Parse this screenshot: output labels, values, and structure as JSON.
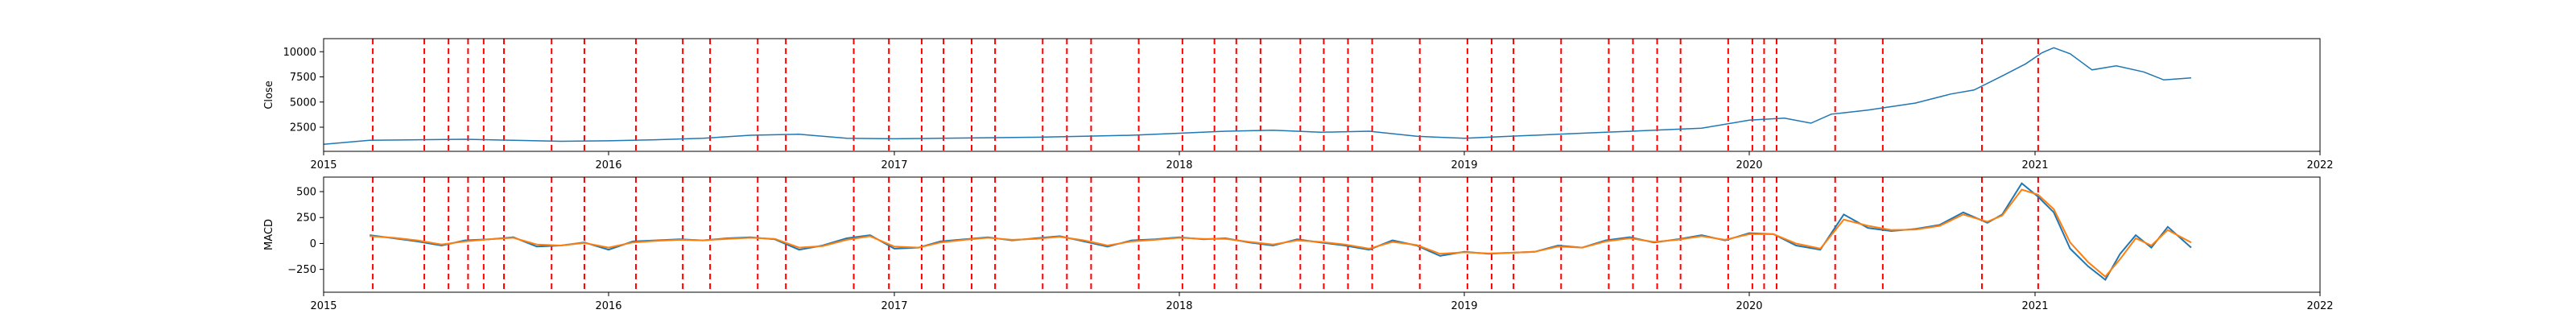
{
  "chart_data": [
    {
      "type": "line",
      "title": "",
      "xlabel": "",
      "ylabel": "Close",
      "xlim": [
        "2015-01-01",
        "2022-01-01"
      ],
      "ylim": [
        100,
        11300
      ],
      "x_ticks": [
        "2015",
        "2016",
        "2017",
        "2018",
        "2019",
        "2020",
        "2021",
        "2022"
      ],
      "y_ticks": [
        2500,
        5000,
        7500,
        10000
      ],
      "y_tick_labels": [
        "2500",
        "5000",
        "7500",
        "10000"
      ],
      "grid": false,
      "series": [
        {
          "color": "#1f77b4",
          "x": [
            "2015-01-01",
            "2015-03-01",
            "2015-05-01",
            "2015-07-01",
            "2015-09-01",
            "2015-11-01",
            "2016-01-01",
            "2016-03-01",
            "2016-05-01",
            "2016-07-01",
            "2016-09-01",
            "2016-11-01",
            "2017-01-01",
            "2017-03-01",
            "2017-05-01",
            "2017-07-01",
            "2017-09-01",
            "2017-11-01",
            "2018-01-01",
            "2018-03-01",
            "2018-05-01",
            "2018-07-01",
            "2018-09-01",
            "2018-11-01",
            "2019-01-01",
            "2019-03-01",
            "2019-05-01",
            "2019-07-01",
            "2019-09-01",
            "2019-11-01",
            "2020-01-01",
            "2020-02-15",
            "2020-03-20",
            "2020-04-15",
            "2020-06-01",
            "2020-08-01",
            "2020-09-15",
            "2020-10-15",
            "2020-11-20",
            "2020-12-20",
            "2021-01-10",
            "2021-01-25",
            "2021-02-15",
            "2021-03-15",
            "2021-04-15",
            "2021-05-20",
            "2021-06-15",
            "2021-07-20"
          ],
          "values": [
            800,
            1200,
            1250,
            1300,
            1200,
            1100,
            1150,
            1250,
            1400,
            1700,
            1800,
            1400,
            1350,
            1400,
            1450,
            1500,
            1600,
            1700,
            1900,
            2100,
            2200,
            2000,
            2100,
            1600,
            1400,
            1600,
            1800,
            2000,
            2200,
            2400,
            3200,
            3400,
            2900,
            3800,
            4200,
            4900,
            5800,
            6200,
            7600,
            8800,
            9900,
            10400,
            9800,
            8200,
            8600,
            8000,
            7200,
            7400
          ]
        }
      ],
      "event_lines": [
        "2015-03-05",
        "2015-05-10",
        "2015-06-10",
        "2015-07-05",
        "2015-07-25",
        "2015-08-20",
        "2015-10-20",
        "2015-12-01",
        "2016-02-05",
        "2016-04-05",
        "2016-05-10",
        "2016-07-10",
        "2016-08-15",
        "2016-11-10",
        "2016-12-25",
        "2017-02-05",
        "2017-03-05",
        "2017-04-10",
        "2017-05-10",
        "2017-07-10",
        "2017-08-10",
        "2017-09-10",
        "2017-11-10",
        "2018-01-05",
        "2018-02-15",
        "2018-03-15",
        "2018-04-15",
        "2018-06-05",
        "2018-07-05",
        "2018-08-05",
        "2018-09-05",
        "2018-11-05",
        "2019-01-05",
        "2019-02-05",
        "2019-03-05",
        "2019-05-05",
        "2019-07-05",
        "2019-08-05",
        "2019-09-05",
        "2019-10-05",
        "2019-12-05",
        "2020-01-05",
        "2020-01-20",
        "2020-02-05",
        "2020-04-20",
        "2020-06-20",
        "2020-10-25",
        "2021-01-05"
      ]
    },
    {
      "type": "line",
      "title": "",
      "xlabel": "",
      "ylabel": "MACD",
      "xlim": [
        "2015-01-01",
        "2022-01-01"
      ],
      "ylim": [
        -470,
        640
      ],
      "x_ticks": [
        "2015",
        "2016",
        "2017",
        "2018",
        "2019",
        "2020",
        "2021",
        "2022"
      ],
      "y_ticks": [
        -250,
        0,
        250,
        500
      ],
      "y_tick_labels": [
        "−250",
        "0",
        "250",
        "500"
      ],
      "grid": false,
      "series": [
        {
          "color": "#1f77b4",
          "x": [
            "2015-03-01",
            "2015-04-01",
            "2015-05-01",
            "2015-06-01",
            "2015-07-01",
            "2015-08-01",
            "2015-09-01",
            "2015-10-01",
            "2015-11-01",
            "2015-12-01",
            "2016-01-01",
            "2016-02-01",
            "2016-03-01",
            "2016-04-01",
            "2016-05-01",
            "2016-06-01",
            "2016-07-01",
            "2016-08-01",
            "2016-09-01",
            "2016-10-01",
            "2016-11-01",
            "2016-12-01",
            "2017-01-01",
            "2017-02-01",
            "2017-03-01",
            "2017-04-01",
            "2017-05-01",
            "2017-06-01",
            "2017-07-01",
            "2017-08-01",
            "2017-09-01",
            "2017-10-01",
            "2017-11-01",
            "2017-12-01",
            "2018-01-01",
            "2018-02-01",
            "2018-03-01",
            "2018-04-01",
            "2018-05-01",
            "2018-06-01",
            "2018-07-01",
            "2018-08-01",
            "2018-09-01",
            "2018-10-01",
            "2018-11-01",
            "2018-12-01",
            "2019-01-01",
            "2019-02-01",
            "2019-03-01",
            "2019-04-01",
            "2019-05-01",
            "2019-06-01",
            "2019-07-01",
            "2019-08-01",
            "2019-09-01",
            "2019-10-01",
            "2019-11-01",
            "2019-12-01",
            "2020-01-01",
            "2020-02-01",
            "2020-03-01",
            "2020-04-01",
            "2020-05-01",
            "2020-06-01",
            "2020-07-01",
            "2020-08-01",
            "2020-09-01",
            "2020-10-01",
            "2020-11-01",
            "2020-11-20",
            "2020-12-15",
            "2021-01-05",
            "2021-01-25",
            "2021-02-15",
            "2021-03-10",
            "2021-04-01",
            "2021-04-20",
            "2021-05-10",
            "2021-05-30",
            "2021-06-20",
            "2021-07-20"
          ],
          "values": [
            80,
            50,
            20,
            -20,
            30,
            40,
            60,
            -30,
            -20,
            10,
            -60,
            20,
            30,
            40,
            30,
            50,
            60,
            40,
            -60,
            -20,
            50,
            80,
            -50,
            -40,
            20,
            40,
            60,
            30,
            50,
            70,
            20,
            -30,
            30,
            40,
            60,
            40,
            50,
            10,
            -20,
            40,
            10,
            -20,
            -60,
            30,
            -20,
            -120,
            -80,
            -100,
            -90,
            -80,
            -20,
            -40,
            30,
            60,
            10,
            40,
            80,
            30,
            100,
            90,
            -20,
            -60,
            280,
            150,
            120,
            140,
            180,
            300,
            200,
            280,
            580,
            450,
            300,
            -50,
            -220,
            -350,
            -100,
            80,
            -40,
            160,
            -40
          ]
        },
        {
          "color": "#ff7f0e",
          "x": [
            "2015-03-01",
            "2015-04-01",
            "2015-05-01",
            "2015-06-01",
            "2015-07-01",
            "2015-08-01",
            "2015-09-01",
            "2015-10-01",
            "2015-11-01",
            "2015-12-01",
            "2016-01-01",
            "2016-02-01",
            "2016-03-01",
            "2016-04-01",
            "2016-05-01",
            "2016-06-01",
            "2016-07-01",
            "2016-08-01",
            "2016-09-01",
            "2016-10-01",
            "2016-11-01",
            "2016-12-01",
            "2017-01-01",
            "2017-02-01",
            "2017-03-01",
            "2017-04-01",
            "2017-05-01",
            "2017-06-01",
            "2017-07-01",
            "2017-08-01",
            "2017-09-01",
            "2017-10-01",
            "2017-11-01",
            "2017-12-01",
            "2018-01-01",
            "2018-02-01",
            "2018-03-01",
            "2018-04-01",
            "2018-05-01",
            "2018-06-01",
            "2018-07-01",
            "2018-08-01",
            "2018-09-01",
            "2018-10-01",
            "2018-11-01",
            "2018-12-01",
            "2019-01-01",
            "2019-02-01",
            "2019-03-01",
            "2019-04-01",
            "2019-05-01",
            "2019-06-01",
            "2019-07-01",
            "2019-08-01",
            "2019-09-01",
            "2019-10-01",
            "2019-11-01",
            "2019-12-01",
            "2020-01-01",
            "2020-02-01",
            "2020-03-01",
            "2020-04-01",
            "2020-05-01",
            "2020-06-01",
            "2020-07-01",
            "2020-08-01",
            "2020-09-01",
            "2020-10-01",
            "2020-11-01",
            "2020-11-20",
            "2020-12-15",
            "2021-01-05",
            "2021-01-25",
            "2021-02-15",
            "2021-03-10",
            "2021-04-01",
            "2021-04-20",
            "2021-05-10",
            "2021-05-30",
            "2021-06-20",
            "2021-07-20"
          ],
          "values": [
            70,
            55,
            30,
            -10,
            20,
            40,
            55,
            -10,
            -20,
            5,
            -40,
            10,
            25,
            35,
            30,
            45,
            55,
            45,
            -40,
            -25,
            35,
            70,
            -30,
            -40,
            10,
            35,
            55,
            35,
            45,
            65,
            30,
            -20,
            20,
            35,
            55,
            45,
            45,
            15,
            -10,
            30,
            15,
            -10,
            -50,
            15,
            -15,
            -100,
            -85,
            -95,
            -90,
            -80,
            -30,
            -40,
            20,
            50,
            15,
            35,
            70,
            35,
            90,
            90,
            0,
            -50,
            230,
            170,
            130,
            135,
            170,
            280,
            210,
            270,
            520,
            470,
            330,
            10,
            -180,
            -320,
            -150,
            50,
            -20,
            130,
            10
          ]
        }
      ],
      "event_lines": [
        "2015-03-05",
        "2015-05-10",
        "2015-06-10",
        "2015-07-05",
        "2015-07-25",
        "2015-08-20",
        "2015-10-20",
        "2015-12-01",
        "2016-02-05",
        "2016-04-05",
        "2016-05-10",
        "2016-07-10",
        "2016-08-15",
        "2016-11-10",
        "2016-12-25",
        "2017-02-05",
        "2017-03-05",
        "2017-04-10",
        "2017-05-10",
        "2017-07-10",
        "2017-08-10",
        "2017-09-10",
        "2017-11-10",
        "2018-01-05",
        "2018-02-15",
        "2018-03-15",
        "2018-04-15",
        "2018-06-05",
        "2018-07-05",
        "2018-08-05",
        "2018-09-05",
        "2018-11-05",
        "2019-01-05",
        "2019-02-05",
        "2019-03-05",
        "2019-05-05",
        "2019-07-05",
        "2019-08-05",
        "2019-09-05",
        "2019-10-05",
        "2019-12-05",
        "2020-01-05",
        "2020-01-20",
        "2020-02-05",
        "2020-04-20",
        "2020-06-20",
        "2020-10-25",
        "2021-01-05"
      ]
    }
  ],
  "colors": {
    "event_line": "#ff0000",
    "close": "#1f77b4",
    "macd": "#1f77b4",
    "signal": "#ff7f0e"
  }
}
